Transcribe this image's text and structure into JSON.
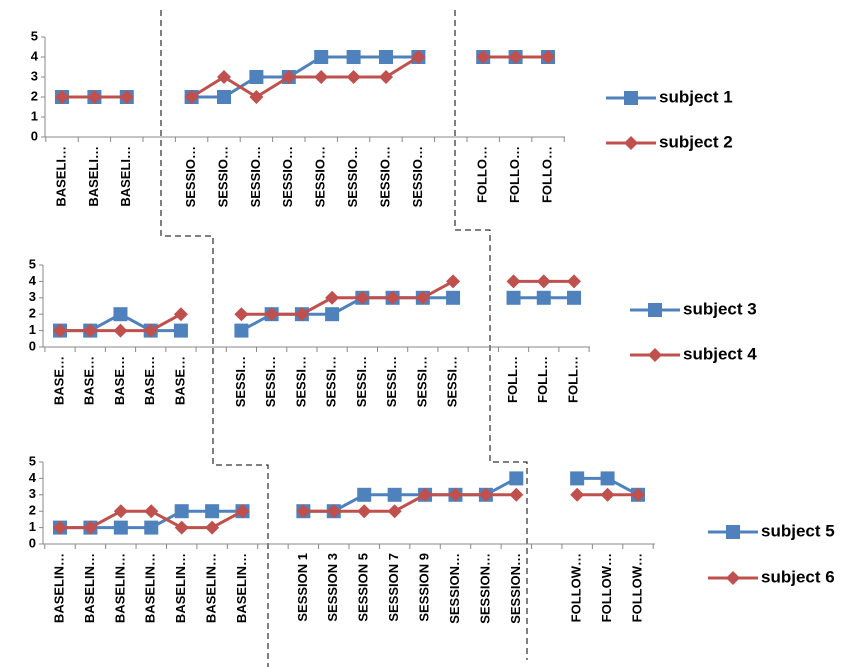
{
  "chart_data": [
    {
      "type": "line",
      "categories": [
        "BASELI…",
        "BASELI…",
        "BASELI…",
        null,
        "SESSIO…",
        "SESSIO…",
        "SESSIO…",
        "SESSIO…",
        "SESSIO…",
        "SESSIO…",
        "SESSIO…",
        "SESSIO…",
        null,
        "FOLLO…",
        "FOLLO…",
        "FOLLO…"
      ],
      "series": [
        {
          "name": "subject 1",
          "color": "#4f81bd",
          "marker": "square",
          "values": [
            2,
            2,
            2,
            null,
            2,
            2,
            3,
            3,
            4,
            4,
            4,
            4,
            null,
            4,
            4,
            4
          ]
        },
        {
          "name": "subject 2",
          "color": "#c0504d",
          "marker": "diamond",
          "values": [
            2,
            2,
            2,
            null,
            2,
            3,
            2,
            3,
            3,
            3,
            3,
            4,
            null,
            4,
            4,
            4
          ]
        }
      ],
      "ylim": [
        0,
        5
      ],
      "yticks": [
        0,
        1,
        2,
        3,
        4,
        5
      ]
    },
    {
      "type": "line",
      "categories": [
        "BASE…",
        "BASE…",
        "BASE…",
        "BASE…",
        "BASE…",
        null,
        "SESSI…",
        "SESSI…",
        "SESSI…",
        "SESSI…",
        "SESSI…",
        "SESSI…",
        "SESSI…",
        "SESSI…",
        null,
        "FOLL…",
        "FOLL…",
        "FOLL…"
      ],
      "series": [
        {
          "name": "subject 3",
          "color": "#4f81bd",
          "marker": "square",
          "values": [
            1,
            1,
            2,
            1,
            1,
            null,
            1,
            2,
            2,
            2,
            3,
            3,
            3,
            3,
            null,
            3,
            3,
            3
          ]
        },
        {
          "name": "subject 4",
          "color": "#c0504d",
          "marker": "diamond",
          "values": [
            1,
            1,
            1,
            1,
            2,
            null,
            2,
            2,
            2,
            3,
            3,
            3,
            3,
            4,
            null,
            4,
            4,
            4
          ]
        }
      ],
      "ylim": [
        0,
        5
      ],
      "yticks": [
        0,
        1,
        2,
        3,
        4,
        5
      ]
    },
    {
      "type": "line",
      "categories": [
        "BASELIN…",
        "BASELIN…",
        "BASELIN…",
        "BASELIN…",
        "BASELIN…",
        "BASELIN…",
        "BASELIN…",
        null,
        "SESSION 1",
        "SESSION 3",
        "SESSION 5",
        "SESSION 7",
        "SESSION 9",
        "SESSION…",
        "SESSION…",
        "SESSION…",
        null,
        "FOLLOW…",
        "FOLLOW…",
        "FOLLOW…"
      ],
      "series": [
        {
          "name": "subject 5",
          "color": "#4f81bd",
          "marker": "square",
          "values": [
            1,
            1,
            1,
            1,
            2,
            2,
            2,
            null,
            2,
            2,
            3,
            3,
            3,
            3,
            3,
            4,
            null,
            4,
            4,
            3
          ]
        },
        {
          "name": "subject 6",
          "color": "#c0504d",
          "marker": "diamond",
          "values": [
            1,
            1,
            2,
            2,
            1,
            1,
            2,
            null,
            2,
            2,
            2,
            2,
            3,
            3,
            3,
            3,
            null,
            3,
            3,
            3
          ]
        }
      ],
      "ylim": [
        0,
        5
      ],
      "yticks": [
        0,
        1,
        2,
        3,
        4,
        5
      ]
    }
  ]
}
